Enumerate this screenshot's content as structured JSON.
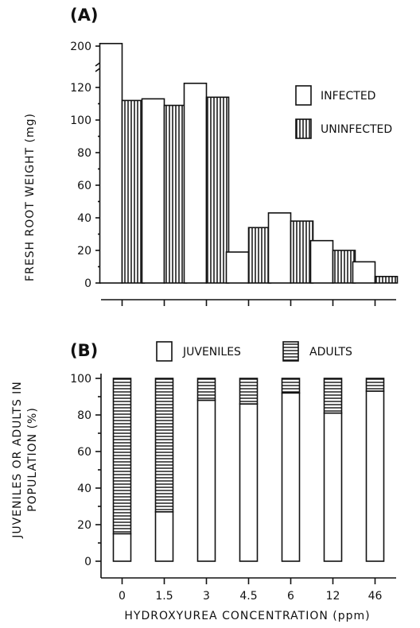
{
  "chart_data": [
    {
      "panel_label": "(A)",
      "type": "bar",
      "ylabel": "FRESH ROOT WEIGHT (mg)",
      "y_ticks": [
        "0",
        "20",
        "40",
        "60",
        "80",
        "100",
        "120",
        "200"
      ],
      "y_axis_break": "120 to 200",
      "ylim": [
        0,
        200
      ],
      "categories": [
        "0",
        "1.5",
        "3",
        "4.5",
        "6",
        "12",
        "46"
      ],
      "legend": [
        {
          "label": "INFECTED",
          "fill": "open"
        },
        {
          "label": "UNINFECTED",
          "fill": "vertical-hatch"
        }
      ],
      "legend_position": "right",
      "series": [
        {
          "name": "INFECTED",
          "values": [
            205,
            113,
            128,
            19,
            43,
            26,
            13
          ]
        },
        {
          "name": "UNINFECTED",
          "values": [
            112,
            109,
            114,
            34,
            38,
            20,
            4
          ]
        }
      ]
    },
    {
      "panel_label": "(B)",
      "type": "bar",
      "stacked": true,
      "ylabel_line1": "JUVENILES OR ADULTS IN",
      "ylabel_line2": "POPULATION (%)",
      "xlabel": "HYDROXYUREA CONCENTRATION (ppm)",
      "y_ticks": [
        "0",
        "20",
        "40",
        "60",
        "80",
        "100"
      ],
      "ylim": [
        0,
        100
      ],
      "categories": [
        "0",
        "1.5",
        "3",
        "4.5",
        "6",
        "12",
        "46"
      ],
      "legend": [
        {
          "label": "JUVENILES",
          "fill": "open"
        },
        {
          "label": "ADULTS",
          "fill": "horizontal-hatch"
        }
      ],
      "legend_position": "top",
      "series": [
        {
          "name": "JUVENILES",
          "values": [
            15,
            27,
            88,
            86,
            92,
            81,
            93
          ]
        },
        {
          "name": "ADULTS",
          "values": [
            85,
            73,
            12,
            14,
            8,
            19,
            7
          ]
        }
      ]
    }
  ]
}
